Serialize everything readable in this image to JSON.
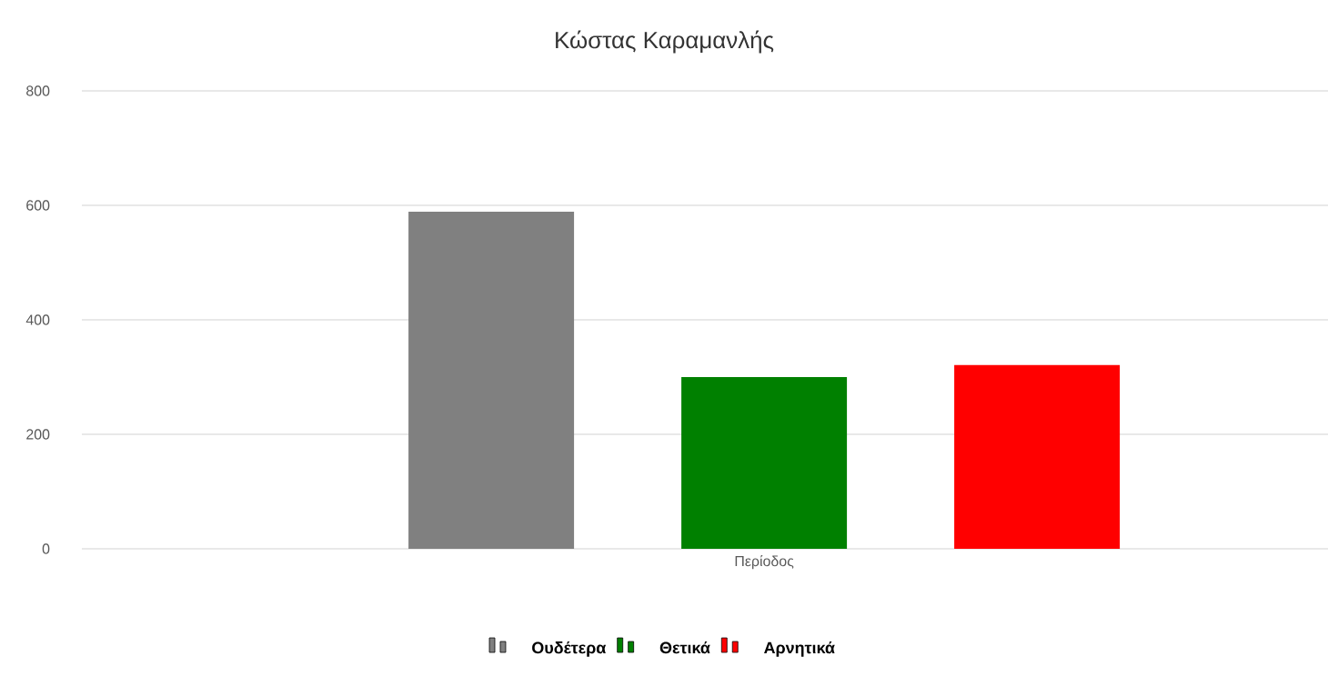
{
  "chart_data": {
    "type": "bar",
    "title": "Κώστας Καραμανλής",
    "categories": [
      "Περίοδος"
    ],
    "series": [
      {
        "name": "Ουδέτερα",
        "color": "#808080",
        "values": [
          589
        ]
      },
      {
        "name": "Θετικά",
        "color": "#008000",
        "values": [
          300
        ]
      },
      {
        "name": "Αρνητικά",
        "color": "#ff0000",
        "values": [
          321
        ]
      }
    ],
    "ylim": [
      0,
      800
    ],
    "yticks": [
      0,
      200,
      400,
      600,
      800
    ],
    "grid": "y",
    "legend": "bottom"
  }
}
